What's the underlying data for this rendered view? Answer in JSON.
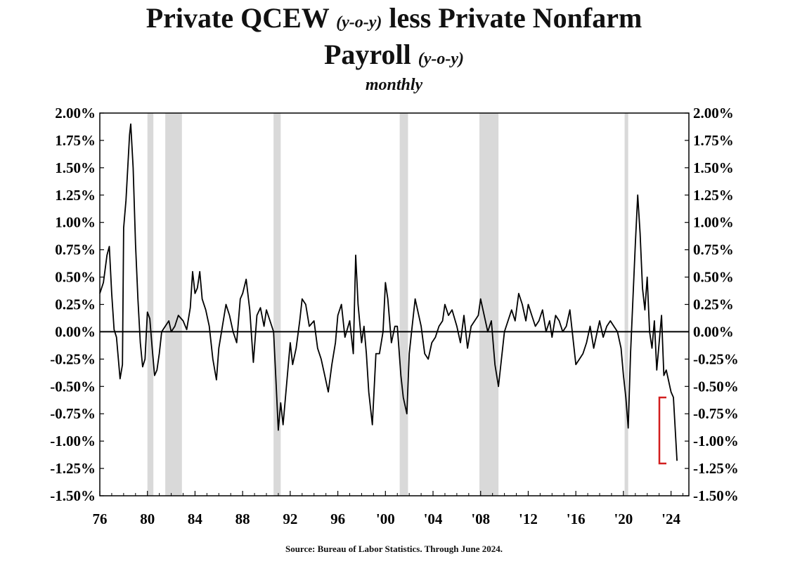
{
  "chart_data": {
    "type": "line",
    "title_part1": "Private QCEW",
    "title_part1_italic": "(y-o-y)",
    "title_part2": "less Private Nonfarm",
    "title_line2": "Payroll",
    "title_line2_italic": "(y-o-y)",
    "subtitle": "monthly",
    "source": "Source: Bureau of Labor Statistics. Through June 2024.",
    "xlim": [
      1976,
      2025.5
    ],
    "ylim": [
      -1.5,
      2.0
    ],
    "y_ticks": [
      "2.00%",
      "1.75%",
      "1.50%",
      "1.25%",
      "1.00%",
      "0.75%",
      "0.50%",
      "0.25%",
      "0.00%",
      "-0.25%",
      "-0.50%",
      "-0.75%",
      "-1.00%",
      "-1.25%",
      "-1.50%"
    ],
    "y_tick_values": [
      2.0,
      1.75,
      1.5,
      1.25,
      1.0,
      0.75,
      0.5,
      0.25,
      0.0,
      -0.25,
      -0.5,
      -0.75,
      -1.0,
      -1.25,
      -1.5
    ],
    "x_ticks": [
      "76",
      "80",
      "84",
      "88",
      "92",
      "96",
      "'00",
      "'04",
      "'08",
      "'12",
      "'16",
      "'20",
      "'24"
    ],
    "x_tick_values": [
      1976,
      1980,
      1984,
      1988,
      1992,
      1996,
      2000,
      2004,
      2008,
      2012,
      2016,
      2020,
      2024
    ],
    "recessions": [
      [
        1980.0,
        1980.5
      ],
      [
        1981.5,
        1982.9
      ],
      [
        1990.6,
        1991.2
      ],
      [
        2001.2,
        2001.9
      ],
      [
        2007.9,
        2009.5
      ],
      [
        2020.1,
        2020.4
      ]
    ],
    "series": [
      {
        "x": [
          1976.0,
          1976.3,
          1976.6,
          1976.8,
          1977.0,
          1977.2,
          1977.4,
          1977.7,
          1977.9,
          1978.0,
          1978.2,
          1978.4,
          1978.5,
          1978.6,
          1978.8,
          1979.0,
          1979.2,
          1979.4,
          1979.6,
          1979.8,
          1980.0,
          1980.2,
          1980.4,
          1980.6,
          1980.8,
          1981.0,
          1981.2,
          1981.5,
          1981.8,
          1982.0,
          1982.3,
          1982.6,
          1983.0,
          1983.3,
          1983.6,
          1983.8,
          1984.0,
          1984.2,
          1984.4,
          1984.6,
          1984.9,
          1985.2,
          1985.5,
          1985.8,
          1986.0,
          1986.3,
          1986.6,
          1986.9,
          1987.2,
          1987.5,
          1987.8,
          1988.0,
          1988.3,
          1988.6,
          1988.9,
          1989.2,
          1989.5,
          1989.8,
          1990.0,
          1990.3,
          1990.6,
          1990.8,
          1991.0,
          1991.2,
          1991.4,
          1991.6,
          1991.8,
          1992.0,
          1992.2,
          1992.5,
          1992.8,
          1993.0,
          1993.3,
          1993.6,
          1994.0,
          1994.3,
          1994.6,
          1994.9,
          1995.2,
          1995.5,
          1995.8,
          1996.0,
          1996.3,
          1996.6,
          1997.0,
          1997.3,
          1997.5,
          1997.7,
          1998.0,
          1998.2,
          1998.4,
          1998.6,
          1998.9,
          1999.2,
          1999.5,
          1999.8,
          2000.0,
          2000.2,
          2000.5,
          2000.8,
          2001.0,
          2001.3,
          2001.5,
          2001.8,
          2002.0,
          2002.2,
          2002.5,
          2002.8,
          2003.0,
          2003.3,
          2003.6,
          2003.9,
          2004.2,
          2004.5,
          2004.8,
          2005.0,
          2005.3,
          2005.6,
          2006.0,
          2006.3,
          2006.6,
          2006.9,
          2007.2,
          2007.5,
          2007.8,
          2008.0,
          2008.3,
          2008.6,
          2008.9,
          2009.2,
          2009.5,
          2009.8,
          2010.0,
          2010.3,
          2010.6,
          2010.9,
          2011.2,
          2011.5,
          2011.8,
          2012.0,
          2012.3,
          2012.6,
          2012.9,
          2013.2,
          2013.5,
          2013.8,
          2014.0,
          2014.3,
          2014.6,
          2014.9,
          2015.2,
          2015.5,
          2015.8,
          2016.0,
          2016.3,
          2016.6,
          2016.9,
          2017.2,
          2017.5,
          2017.8,
          2018.0,
          2018.3,
          2018.6,
          2018.9,
          2019.2,
          2019.5,
          2019.8,
          2020.0,
          2020.2,
          2020.4,
          2020.6,
          2020.8,
          2021.0,
          2021.2,
          2021.4,
          2021.6,
          2021.8,
          2022.0,
          2022.2,
          2022.4,
          2022.6,
          2022.8,
          2023.0,
          2023.2,
          2023.4,
          2023.6,
          2023.8,
          2024.0,
          2024.2,
          2024.5
        ],
        "values": [
          0.35,
          0.45,
          0.7,
          0.78,
          0.35,
          0.02,
          -0.05,
          -0.43,
          -0.3,
          0.95,
          1.2,
          1.6,
          1.8,
          1.9,
          1.5,
          0.8,
          0.3,
          -0.1,
          -0.32,
          -0.25,
          0.18,
          0.12,
          -0.15,
          -0.4,
          -0.35,
          -0.2,
          0.0,
          0.05,
          0.1,
          0.0,
          0.05,
          0.15,
          0.1,
          0.02,
          0.22,
          0.55,
          0.35,
          0.4,
          0.55,
          0.3,
          0.2,
          0.05,
          -0.25,
          -0.44,
          -0.15,
          0.05,
          0.25,
          0.15,
          0.0,
          -0.1,
          0.3,
          0.35,
          0.48,
          0.2,
          -0.28,
          0.15,
          0.22,
          0.05,
          0.2,
          0.1,
          0.0,
          -0.45,
          -0.9,
          -0.65,
          -0.85,
          -0.6,
          -0.35,
          -0.1,
          -0.3,
          -0.15,
          0.1,
          0.3,
          0.25,
          0.05,
          0.1,
          -0.15,
          -0.25,
          -0.4,
          -0.55,
          -0.3,
          -0.1,
          0.15,
          0.25,
          -0.05,
          0.1,
          -0.2,
          0.7,
          0.25,
          -0.1,
          0.05,
          -0.2,
          -0.55,
          -0.85,
          -0.2,
          -0.2,
          0.0,
          0.45,
          0.3,
          -0.1,
          0.05,
          0.05,
          -0.4,
          -0.6,
          -0.75,
          -0.2,
          0.0,
          0.3,
          0.15,
          0.05,
          -0.2,
          -0.25,
          -0.1,
          -0.05,
          0.05,
          0.1,
          0.25,
          0.15,
          0.2,
          0.05,
          -0.1,
          0.15,
          -0.15,
          0.05,
          0.1,
          0.15,
          0.3,
          0.15,
          0.0,
          0.1,
          -0.3,
          -0.5,
          -0.2,
          0.0,
          0.1,
          0.2,
          0.1,
          0.35,
          0.25,
          0.1,
          0.25,
          0.15,
          0.05,
          0.1,
          0.2,
          0.0,
          0.1,
          -0.05,
          0.15,
          0.1,
          0.0,
          0.05,
          0.2,
          -0.1,
          -0.3,
          -0.25,
          -0.2,
          -0.1,
          0.05,
          -0.15,
          0.0,
          0.1,
          -0.05,
          0.05,
          0.1,
          0.05,
          0.0,
          -0.15,
          -0.4,
          -0.6,
          -0.88,
          -0.2,
          0.3,
          0.8,
          1.25,
          0.9,
          0.4,
          0.2,
          0.5,
          0.0,
          -0.15,
          0.1,
          -0.35,
          -0.1,
          0.15,
          -0.4,
          -0.35,
          -0.45,
          -0.55,
          -0.6,
          -1.18
        ]
      }
    ]
  }
}
